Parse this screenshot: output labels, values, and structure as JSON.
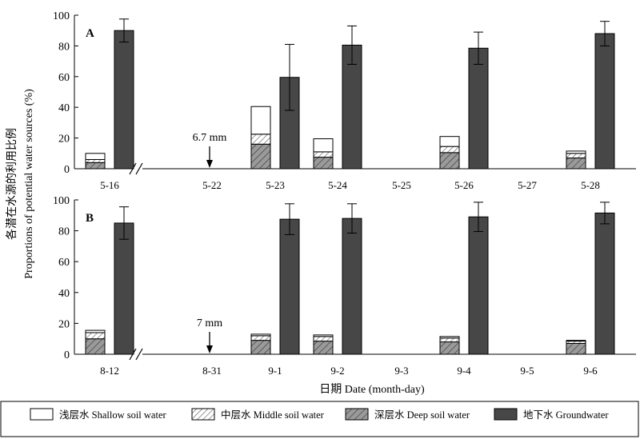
{
  "chart_data": {
    "type": "bar",
    "ylabel_cn": "各潜在水源的利用比例",
    "ylabel_en": "Proportions of  potential water sources (%)",
    "xlabel": "日期 Date (month-day)",
    "ylim": [
      0,
      100
    ],
    "yticks": [
      "0",
      "20",
      "40",
      "60",
      "80",
      "100"
    ],
    "legend_position": "bottom",
    "legend": [
      {
        "key": "shallow",
        "label": "浅层水 Shallow soil water",
        "style": "white"
      },
      {
        "key": "middle",
        "label": "中层水 Middle soil water",
        "style": "light-hatch"
      },
      {
        "key": "deep",
        "label": "深层水 Deep soil water",
        "style": "gray-hatch"
      },
      {
        "key": "ground",
        "label": "地下水 Groundwater",
        "style": "dark"
      }
    ],
    "panels": [
      {
        "label": "A",
        "categories": [
          "5-16",
          "5-22",
          "5-23",
          "5-24",
          "5-25",
          "5-26",
          "5-27",
          "5-28"
        ],
        "break_after": "5-16",
        "rain": {
          "at": "5-22",
          "text": "6.7 mm"
        },
        "data": [
          {
            "date": "5-16",
            "deep": 4,
            "middle": 2,
            "shallow": 4,
            "ground": 90,
            "ground_err": 7.5
          },
          {
            "date": "5-23",
            "deep": 16,
            "middle": 6.5,
            "shallow": 18,
            "ground": 59.5,
            "ground_err": 21.5
          },
          {
            "date": "5-24",
            "deep": 7.5,
            "middle": 3.5,
            "shallow": 8.5,
            "ground": 80.5,
            "ground_err": 12.5
          },
          {
            "date": "5-26",
            "deep": 10.5,
            "middle": 4,
            "shallow": 6.5,
            "ground": 78.5,
            "ground_err": 10.5
          },
          {
            "date": "5-28",
            "deep": 7,
            "middle": 3,
            "shallow": 1.5,
            "ground": 88,
            "ground_err": 8
          }
        ]
      },
      {
        "label": "B",
        "categories": [
          "8-12",
          "8-31",
          "9-1",
          "9-2",
          "9-3",
          "9-4",
          "9-5",
          "9-6"
        ],
        "break_after": "8-12",
        "rain": {
          "at": "8-31",
          "text": "7 mm"
        },
        "data": [
          {
            "date": "8-12",
            "deep": 10,
            "middle": 4,
            "shallow": 1.5,
            "ground": 85,
            "ground_err": 10.5
          },
          {
            "date": "9-1",
            "deep": 9,
            "middle": 3,
            "shallow": 1,
            "ground": 87.5,
            "ground_err": 10
          },
          {
            "date": "9-2",
            "deep": 8.5,
            "middle": 3,
            "shallow": 1,
            "ground": 88,
            "ground_err": 9.5
          },
          {
            "date": "9-4",
            "deep": 8,
            "middle": 2.5,
            "shallow": 1,
            "ground": 89,
            "ground_err": 9.5
          },
          {
            "date": "9-6",
            "deep": 7,
            "middle": 1.5,
            "shallow": 0.5,
            "ground": 91.5,
            "ground_err": 7
          }
        ]
      }
    ]
  }
}
